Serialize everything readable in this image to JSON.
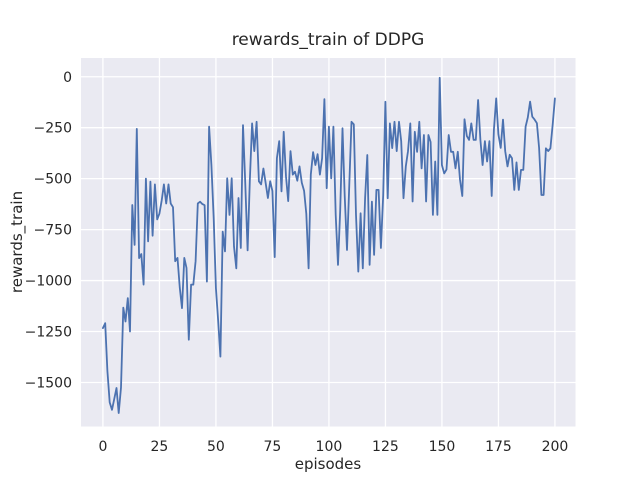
{
  "chart_data": {
    "type": "line",
    "title": "rewards_train of DDPG",
    "xlabel": "episodes",
    "ylabel": "rewards_train",
    "legend": "none",
    "grid": "on",
    "x_ticks": [
      0,
      25,
      50,
      75,
      100,
      125,
      150,
      175,
      200
    ],
    "y_ticks": [
      0,
      -250,
      -500,
      -750,
      -1000,
      -1250,
      -1500
    ],
    "xlim": [
      -9.7,
      209.1
    ],
    "ylim": [
      -1716,
      92
    ],
    "x_start": 0,
    "x_step": 1,
    "series": [
      {
        "name": "rewards_train",
        "color": "#4c72b0",
        "values": [
          -1233,
          -1209,
          -1443,
          -1598,
          -1634,
          -1582,
          -1527,
          -1650,
          -1525,
          -1133,
          -1201,
          -1086,
          -1250,
          -629,
          -825,
          -256,
          -890,
          -870,
          -1020,
          -500,
          -808,
          -515,
          -780,
          -528,
          -700,
          -672,
          -607,
          -528,
          -622,
          -528,
          -622,
          -640,
          -905,
          -889,
          -1036,
          -1135,
          -889,
          -938,
          -1290,
          -1020,
          -1020,
          -905,
          -622,
          -613,
          -625,
          -630,
          -1005,
          -245,
          -433,
          -694,
          -1036,
          -1200,
          -1373,
          -760,
          -857,
          -498,
          -678,
          -498,
          -833,
          -940,
          -595,
          -840,
          -237,
          -528,
          -852,
          -513,
          -229,
          -365,
          -221,
          -513,
          -528,
          -450,
          -520,
          -595,
          -513,
          -560,
          -885,
          -400,
          -316,
          -562,
          -270,
          -490,
          -610,
          -365,
          -480,
          -466,
          -510,
          -440,
          -520,
          -560,
          -672,
          -940,
          -480,
          -370,
          -433,
          -380,
          -480,
          -400,
          -110,
          -547,
          -245,
          -498,
          -245,
          -678,
          -923,
          -655,
          -253,
          -583,
          -850,
          -528,
          -221,
          -234,
          -678,
          -956,
          -670,
          -940,
          -595,
          -384,
          -923,
          -613,
          -874,
          -555,
          -555,
          -840,
          -580,
          -123,
          -596,
          -229,
          -350,
          -221,
          -365,
          -221,
          -316,
          -596,
          -440,
          -365,
          -229,
          -612,
          -270,
          -368,
          -221,
          -449,
          -286,
          -612,
          -286,
          -320,
          -678,
          -416,
          -678,
          -5,
          -433,
          -474,
          -455,
          -286,
          -368,
          -368,
          -449,
          -368,
          -505,
          -585,
          -209,
          -290,
          -310,
          -229,
          -310,
          -310,
          -114,
          -310,
          -433,
          -316,
          -416,
          -316,
          -585,
          -260,
          -106,
          -283,
          -349,
          -210,
          -365,
          -440,
          -383,
          -400,
          -555,
          -420,
          -555,
          -457,
          -457,
          -245,
          -200,
          -122,
          -196,
          -210,
          -228,
          -349,
          -580,
          -580,
          -351,
          -365,
          -351,
          -234,
          -106
        ]
      }
    ],
    "colors": {
      "figure_bg": "#ffffff",
      "axes_bg": "#eaeaf2",
      "grid": "#ffffff",
      "line": "#4c72b0",
      "text": "#262626"
    }
  }
}
